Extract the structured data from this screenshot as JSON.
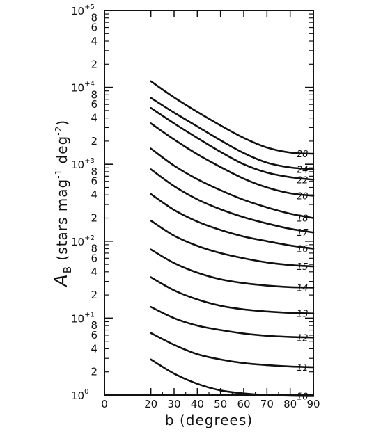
{
  "chart_data": {
    "type": "line",
    "xlabel": "b (degrees)",
    "ylabel": {
      "symbol": "A",
      "subscript": "B",
      "text": "(stars mag",
      "exp1": "-1",
      "text2": "deg",
      "exp2": "-2",
      "close": ")"
    },
    "xlim": [
      0,
      90
    ],
    "ylim": [
      1,
      100000
    ],
    "yscale": "log",
    "x_tick_labels": [
      "0",
      "20",
      "30",
      "40",
      "50",
      "60",
      "70",
      "80",
      "90"
    ],
    "y_major_ticks": [
      {
        "base": "10",
        "exp": "0"
      },
      {
        "base": "10",
        "exp": "+1"
      },
      {
        "base": "10",
        "exp": "+2"
      },
      {
        "base": "10",
        "exp": "+3"
      },
      {
        "base": "10",
        "exp": "+4"
      },
      {
        "base": "10",
        "exp": "+5"
      }
    ],
    "y_minor_labels": [
      "2",
      "4",
      "6",
      "8"
    ],
    "grid": false,
    "x": [
      20,
      30,
      40,
      50,
      60,
      70,
      80,
      90
    ],
    "series": [
      {
        "name": "10",
        "values": [
          2.9,
          1.9,
          1.4,
          1.15,
          1.05,
          1.0,
          0.98,
          0.97
        ]
      },
      {
        "name": "11",
        "values": [
          6.4,
          4.5,
          3.4,
          2.9,
          2.6,
          2.45,
          2.35,
          2.3
        ]
      },
      {
        "name": "12",
        "values": [
          14,
          10,
          8,
          7,
          6.3,
          5.9,
          5.7,
          5.6
        ]
      },
      {
        "name": "13",
        "values": [
          34,
          23,
          17.5,
          14.5,
          13,
          12.2,
          11.7,
          11.5
        ]
      },
      {
        "name": "14",
        "values": [
          78,
          52,
          39,
          32,
          28.5,
          26.5,
          25.3,
          25
        ]
      },
      {
        "name": "15",
        "values": [
          185,
          118,
          87,
          70,
          60,
          53,
          49,
          47
        ]
      },
      {
        "name": "16",
        "values": [
          410,
          255,
          180,
          140,
          115,
          100,
          88,
          80
        ]
      },
      {
        "name": "17",
        "values": [
          860,
          520,
          350,
          260,
          205,
          170,
          145,
          130
        ]
      },
      {
        "name": "18",
        "values": [
          1600,
          960,
          640,
          460,
          345,
          275,
          228,
          200
        ]
      },
      {
        "name": "20",
        "values": [
          3400,
          2100,
          1350,
          920,
          650,
          500,
          420,
          390
        ]
      },
      {
        "name": "22",
        "values": [
          5400,
          3400,
          2200,
          1450,
          1000,
          780,
          680,
          630
        ]
      },
      {
        "name": "24",
        "values": [
          7300,
          4700,
          3100,
          2050,
          1400,
          1050,
          910,
          860
        ]
      },
      {
        "name": "28",
        "values": [
          12000,
          7400,
          4800,
          3200,
          2200,
          1650,
          1420,
          1370
        ]
      }
    ]
  }
}
